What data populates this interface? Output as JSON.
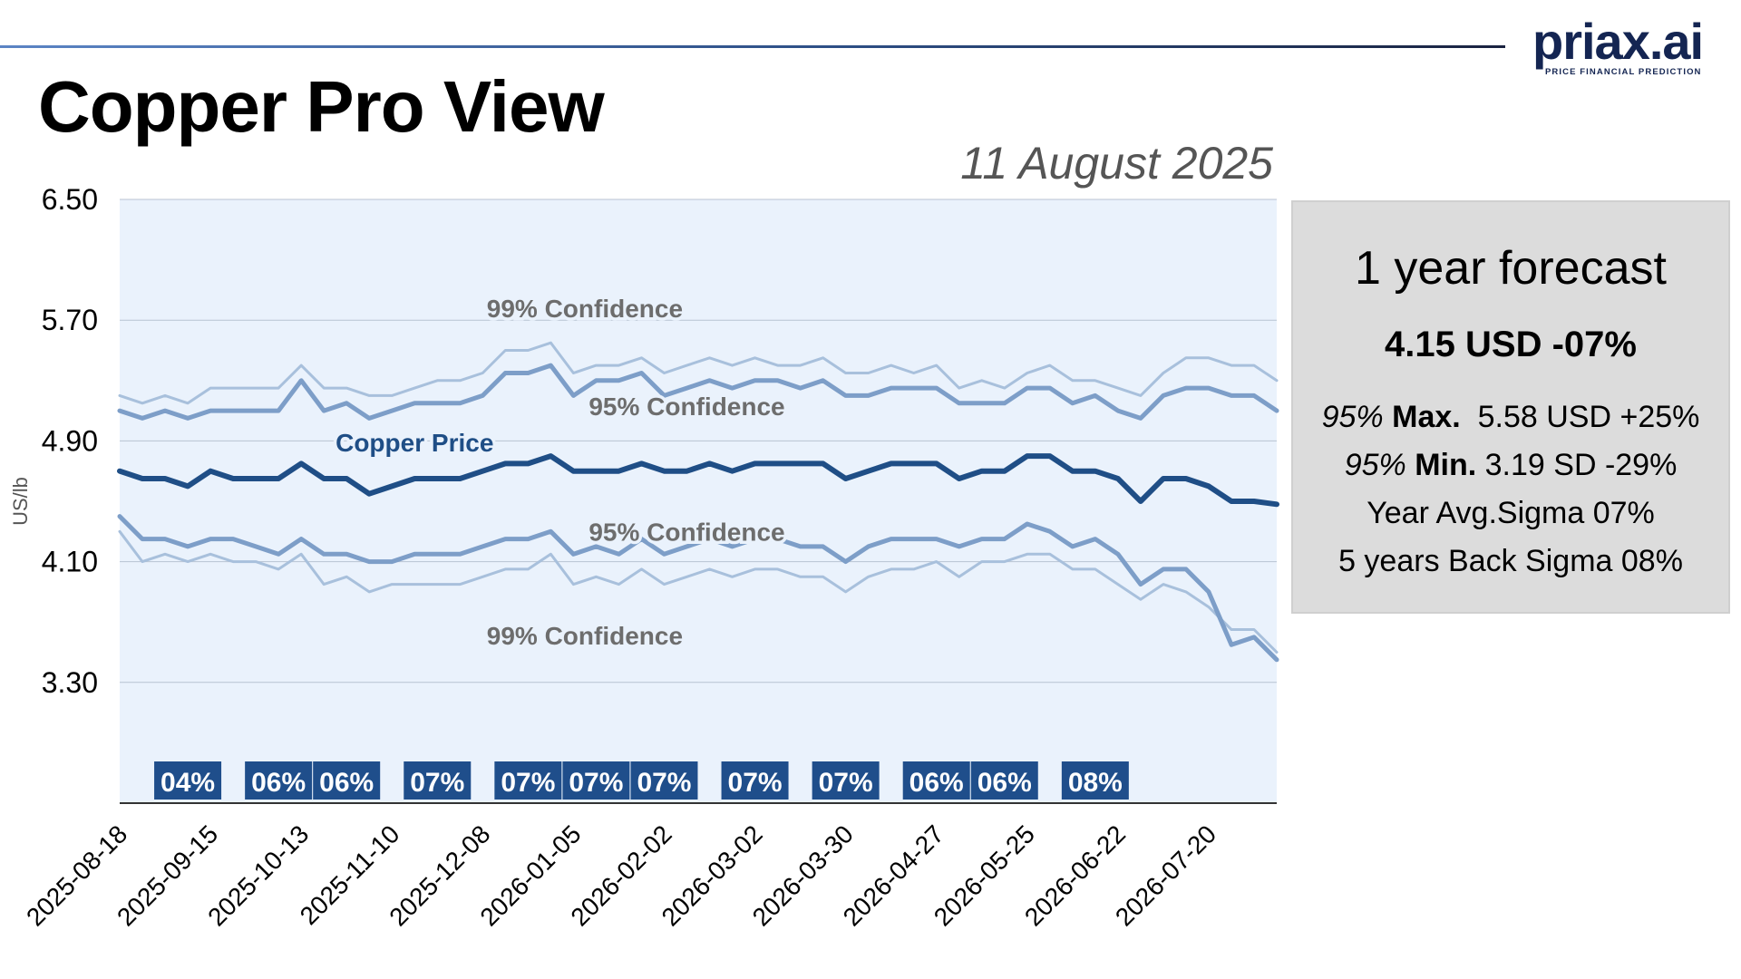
{
  "header": {
    "title": "Copper Pro View",
    "date": "11 August 2025",
    "logo_text": "priax.ai",
    "logo_tagline": "PRICE FINANCIAL PREDICTION"
  },
  "colors": {
    "top_rule": "#2d4f86",
    "plot_bg": "#eaf2fc",
    "price_line": "#1f4e86",
    "band95": "#7d9ec8",
    "band99": "#a8c0dc",
    "sigma_box": "#1f4e8b",
    "panel_bg": "#dcdcdc",
    "label_grey": "#6d6d6d"
  },
  "forecast_panel": {
    "title": "1 year forecast",
    "headline": "4.15 USD -07%",
    "max": {
      "prefix": "95%",
      "label": "Max.",
      "value": "5.58 USD +25%"
    },
    "min": {
      "prefix": "95%",
      "label": "Min.",
      "value": "3.19 SD -29%"
    },
    "year_avg": "Year Avg.Sigma 07%",
    "five_year": "5 years Back Sigma 08%"
  },
  "chart_data": {
    "type": "line",
    "title": "",
    "xlabel": "",
    "ylabel": "US/lb",
    "ylim": [
      2.5,
      6.5
    ],
    "yticks": [
      "6.50",
      "5.70",
      "4.90",
      "4.10",
      "3.30"
    ],
    "ytick_values": [
      6.5,
      5.7,
      4.9,
      4.1,
      3.3
    ],
    "grid": true,
    "x_tick_labels": [
      "2025-08-18",
      "2025-09-15",
      "2025-10-13",
      "2025-11-10",
      "2025-12-08",
      "2026-01-05",
      "2026-02-02",
      "2026-03-02",
      "2026-03-30",
      "2026-04-27",
      "2026-05-25",
      "2026-06-22",
      "2026-07-20"
    ],
    "x_tick_indices": [
      0,
      4,
      8,
      12,
      16,
      20,
      24,
      28,
      32,
      36,
      40,
      44,
      48
    ],
    "x_count": 52,
    "series": [
      {
        "name": "Copper Price",
        "role": "price",
        "values": [
          4.7,
          4.65,
          4.65,
          4.6,
          4.7,
          4.65,
          4.65,
          4.65,
          4.75,
          4.65,
          4.65,
          4.55,
          4.6,
          4.65,
          4.65,
          4.65,
          4.7,
          4.75,
          4.75,
          4.8,
          4.7,
          4.7,
          4.7,
          4.75,
          4.7,
          4.7,
          4.75,
          4.7,
          4.75,
          4.75,
          4.75,
          4.75,
          4.65,
          4.7,
          4.75,
          4.75,
          4.75,
          4.65,
          4.7,
          4.7,
          4.8,
          4.8,
          4.7,
          4.7,
          4.65,
          4.5,
          4.65,
          4.65,
          4.6,
          4.5,
          4.5,
          4.48
        ]
      },
      {
        "name": "95% Confidence",
        "role": "upper95",
        "values": [
          5.1,
          5.05,
          5.1,
          5.05,
          5.1,
          5.1,
          5.1,
          5.1,
          5.3,
          5.1,
          5.15,
          5.05,
          5.1,
          5.15,
          5.15,
          5.15,
          5.2,
          5.35,
          5.35,
          5.4,
          5.2,
          5.3,
          5.3,
          5.35,
          5.2,
          5.25,
          5.3,
          5.25,
          5.3,
          5.3,
          5.25,
          5.3,
          5.2,
          5.2,
          5.25,
          5.25,
          5.25,
          5.15,
          5.15,
          5.15,
          5.25,
          5.25,
          5.15,
          5.2,
          5.1,
          5.05,
          5.2,
          5.25,
          5.25,
          5.2,
          5.2,
          5.1
        ]
      },
      {
        "name": "99% Confidence",
        "role": "upper99",
        "values": [
          5.2,
          5.15,
          5.2,
          5.15,
          5.25,
          5.25,
          5.25,
          5.25,
          5.4,
          5.25,
          5.25,
          5.2,
          5.2,
          5.25,
          5.3,
          5.3,
          5.35,
          5.5,
          5.5,
          5.55,
          5.35,
          5.4,
          5.4,
          5.45,
          5.35,
          5.4,
          5.45,
          5.4,
          5.45,
          5.4,
          5.4,
          5.45,
          5.35,
          5.35,
          5.4,
          5.35,
          5.4,
          5.25,
          5.3,
          5.25,
          5.35,
          5.4,
          5.3,
          5.3,
          5.25,
          5.2,
          5.35,
          5.45,
          5.45,
          5.4,
          5.4,
          5.3
        ]
      },
      {
        "name": "95% Confidence",
        "role": "lower95",
        "values": [
          4.4,
          4.25,
          4.25,
          4.2,
          4.25,
          4.25,
          4.2,
          4.15,
          4.25,
          4.15,
          4.15,
          4.1,
          4.1,
          4.15,
          4.15,
          4.15,
          4.2,
          4.25,
          4.25,
          4.3,
          4.15,
          4.2,
          4.15,
          4.25,
          4.15,
          4.2,
          4.25,
          4.2,
          4.25,
          4.25,
          4.2,
          4.2,
          4.1,
          4.2,
          4.25,
          4.25,
          4.25,
          4.2,
          4.25,
          4.25,
          4.35,
          4.3,
          4.2,
          4.25,
          4.15,
          3.95,
          4.05,
          4.05,
          3.9,
          3.55,
          3.6,
          3.45
        ]
      },
      {
        "name": "99% Confidence",
        "role": "lower99",
        "values": [
          4.3,
          4.1,
          4.15,
          4.1,
          4.15,
          4.1,
          4.1,
          4.05,
          4.15,
          3.95,
          4.0,
          3.9,
          3.95,
          3.95,
          3.95,
          3.95,
          4.0,
          4.05,
          4.05,
          4.15,
          3.95,
          4.0,
          3.95,
          4.05,
          3.95,
          4.0,
          4.05,
          4.0,
          4.05,
          4.05,
          4.0,
          4.0,
          3.9,
          4.0,
          4.05,
          4.05,
          4.1,
          4.0,
          4.1,
          4.1,
          4.15,
          4.15,
          4.05,
          4.05,
          3.95,
          3.85,
          3.95,
          3.9,
          3.8,
          3.65,
          3.65,
          3.5
        ]
      }
    ],
    "annotations": [
      {
        "text": "99% Confidence",
        "role": "upper99"
      },
      {
        "text": "95% Confidence",
        "role": "upper95"
      },
      {
        "text": "Copper Price",
        "role": "price"
      },
      {
        "text": "95% Confidence",
        "role": "lower95"
      },
      {
        "text": "99% Confidence",
        "role": "lower99"
      }
    ],
    "sigma_boxes": [
      {
        "label": "04%",
        "index": 3
      },
      {
        "label": "06%",
        "index": 7
      },
      {
        "label": "06%",
        "index": 10
      },
      {
        "label": "07%",
        "index": 14
      },
      {
        "label": "07%",
        "index": 18
      },
      {
        "label": "07%",
        "index": 21
      },
      {
        "label": "07%",
        "index": 24
      },
      {
        "label": "07%",
        "index": 28
      },
      {
        "label": "07%",
        "index": 32
      },
      {
        "label": "06%",
        "index": 36
      },
      {
        "label": "06%",
        "index": 39
      },
      {
        "label": "08%",
        "index": 43
      }
    ]
  }
}
